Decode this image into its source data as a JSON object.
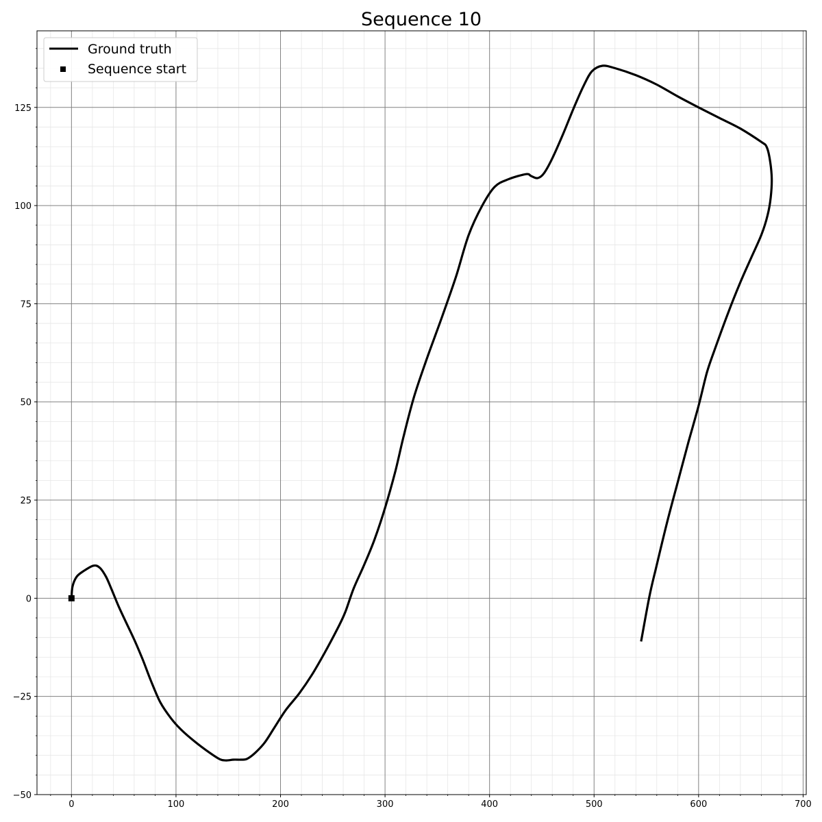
{
  "chart_data": {
    "type": "line",
    "title": "Sequence 10",
    "xlabel": "",
    "ylabel": "",
    "xlim": [
      -33,
      703
    ],
    "ylim": [
      -50,
      144.5
    ],
    "xticks": [
      0,
      100,
      200,
      300,
      400,
      500,
      600,
      700
    ],
    "yticks": [
      -50,
      -25,
      0,
      25,
      50,
      75,
      100,
      125
    ],
    "ytick_labels": [
      "−50",
      "−25",
      "0",
      "25",
      "50",
      "75",
      "100",
      "125"
    ],
    "grid": {
      "major": true,
      "minor": true
    },
    "legend": {
      "placement": "top-left",
      "entries": [
        "Ground truth",
        "Sequence start"
      ]
    },
    "colors": {
      "line": "#000000",
      "marker": "#000000",
      "major_grid": "#808080",
      "minor_grid": "#e6e6e6"
    },
    "series": [
      {
        "name": "Ground truth",
        "points": [
          [
            0,
            0
          ],
          [
            1,
            3
          ],
          [
            5,
            5.5
          ],
          [
            12,
            7
          ],
          [
            21,
            8.3
          ],
          [
            27,
            7.8
          ],
          [
            33,
            5.5
          ],
          [
            38,
            2.5
          ],
          [
            45,
            -2
          ],
          [
            52,
            -6
          ],
          [
            60,
            -10.5
          ],
          [
            68,
            -15.5
          ],
          [
            76,
            -21
          ],
          [
            85,
            -26.5
          ],
          [
            95,
            -30.5
          ],
          [
            105,
            -33.5
          ],
          [
            118,
            -36.5
          ],
          [
            132,
            -39.3
          ],
          [
            142,
            -41
          ],
          [
            148,
            -41.3
          ],
          [
            155,
            -41.1
          ],
          [
            162,
            -41.1
          ],
          [
            168,
            -40.9
          ],
          [
            176,
            -39.3
          ],
          [
            185,
            -36.7
          ],
          [
            194,
            -33
          ],
          [
            205,
            -28.5
          ],
          [
            218,
            -24.2
          ],
          [
            230,
            -19.5
          ],
          [
            242,
            -14
          ],
          [
            255,
            -7.5
          ],
          [
            262,
            -3.5
          ],
          [
            270,
            2.5
          ],
          [
            280,
            8.5
          ],
          [
            290,
            15
          ],
          [
            300,
            23
          ],
          [
            310,
            32.5
          ],
          [
            318,
            41.5
          ],
          [
            328,
            51.5
          ],
          [
            340,
            61
          ],
          [
            355,
            72
          ],
          [
            368,
            82
          ],
          [
            380,
            92.5
          ],
          [
            393,
            100
          ],
          [
            405,
            104.8
          ],
          [
            418,
            106.7
          ],
          [
            435,
            108
          ],
          [
            440,
            107.5
          ],
          [
            446,
            107
          ],
          [
            452,
            108.2
          ],
          [
            460,
            112
          ],
          [
            470,
            118
          ],
          [
            480,
            124.5
          ],
          [
            490,
            130.5
          ],
          [
            498,
            134.2
          ],
          [
            508,
            135.6
          ],
          [
            520,
            135
          ],
          [
            540,
            133.2
          ],
          [
            560,
            130.8
          ],
          [
            580,
            127.8
          ],
          [
            600,
            125
          ],
          [
            620,
            122.3
          ],
          [
            640,
            119.6
          ],
          [
            660,
            116.2
          ],
          [
            665,
            115
          ],
          [
            668,
            112
          ],
          [
            670,
            107
          ],
          [
            669,
            102
          ],
          [
            666,
            97.5
          ],
          [
            660,
            92.5
          ],
          [
            650,
            86.5
          ],
          [
            640,
            80.5
          ],
          [
            628,
            72.5
          ],
          [
            615,
            63
          ],
          [
            608,
            57.5
          ],
          [
            600,
            49
          ],
          [
            590,
            39.5
          ],
          [
            580,
            29.5
          ],
          [
            570,
            19.5
          ],
          [
            560,
            8.5
          ],
          [
            553,
            0.5
          ],
          [
            545,
            -11
          ]
        ]
      }
    ],
    "markers": [
      {
        "name": "Sequence start",
        "x": 0,
        "y": 0,
        "shape": "square"
      }
    ]
  }
}
